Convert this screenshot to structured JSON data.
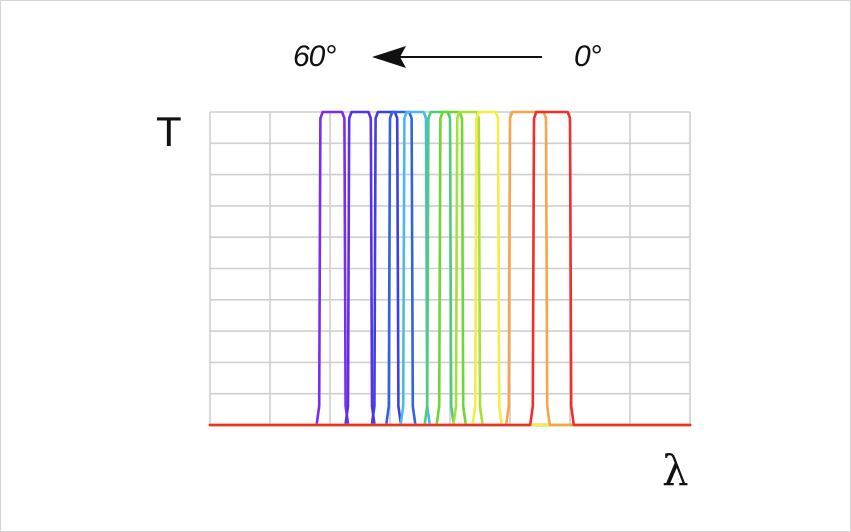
{
  "chart_data": {
    "type": "line",
    "title": "",
    "xlabel": "λ",
    "ylabel": "T",
    "grid": true,
    "ylim": [
      0,
      1
    ],
    "arrow_annotation": {
      "from_label": "0°",
      "to_label": "60°"
    },
    "series": [
      {
        "color": "#7a2cf0",
        "passband": [
          0.23,
          0.28
        ],
        "peak": 1.0
      },
      {
        "color": "#5a31e6",
        "passband": [
          0.29,
          0.335
        ],
        "peak": 1.0
      },
      {
        "color": "#3d3fe2",
        "passband": [
          0.345,
          0.39
        ],
        "peak": 1.0
      },
      {
        "color": "#2f63e4",
        "passband": [
          0.375,
          0.42
        ],
        "peak": 1.0
      },
      {
        "color": "#48b8ee",
        "passband": [
          0.405,
          0.45
        ],
        "peak": 1.0
      },
      {
        "color": "#4fcc7a",
        "passband": [
          0.455,
          0.5
        ],
        "peak": 1.0
      },
      {
        "color": "#6ed831",
        "passband": [
          0.48,
          0.525
        ],
        "peak": 1.0
      },
      {
        "color": "#a8df3a",
        "passband": [
          0.515,
          0.56
        ],
        "peak": 1.0
      },
      {
        "color": "#f2ee45",
        "passband": [
          0.555,
          0.6
        ],
        "peak": 1.0
      },
      {
        "color": "#f7a44a",
        "passband": [
          0.625,
          0.7
        ],
        "peak": 1.0
      },
      {
        "color": "#ee2f2a",
        "passband": [
          0.675,
          0.75
        ],
        "peak": 1.0
      }
    ]
  }
}
